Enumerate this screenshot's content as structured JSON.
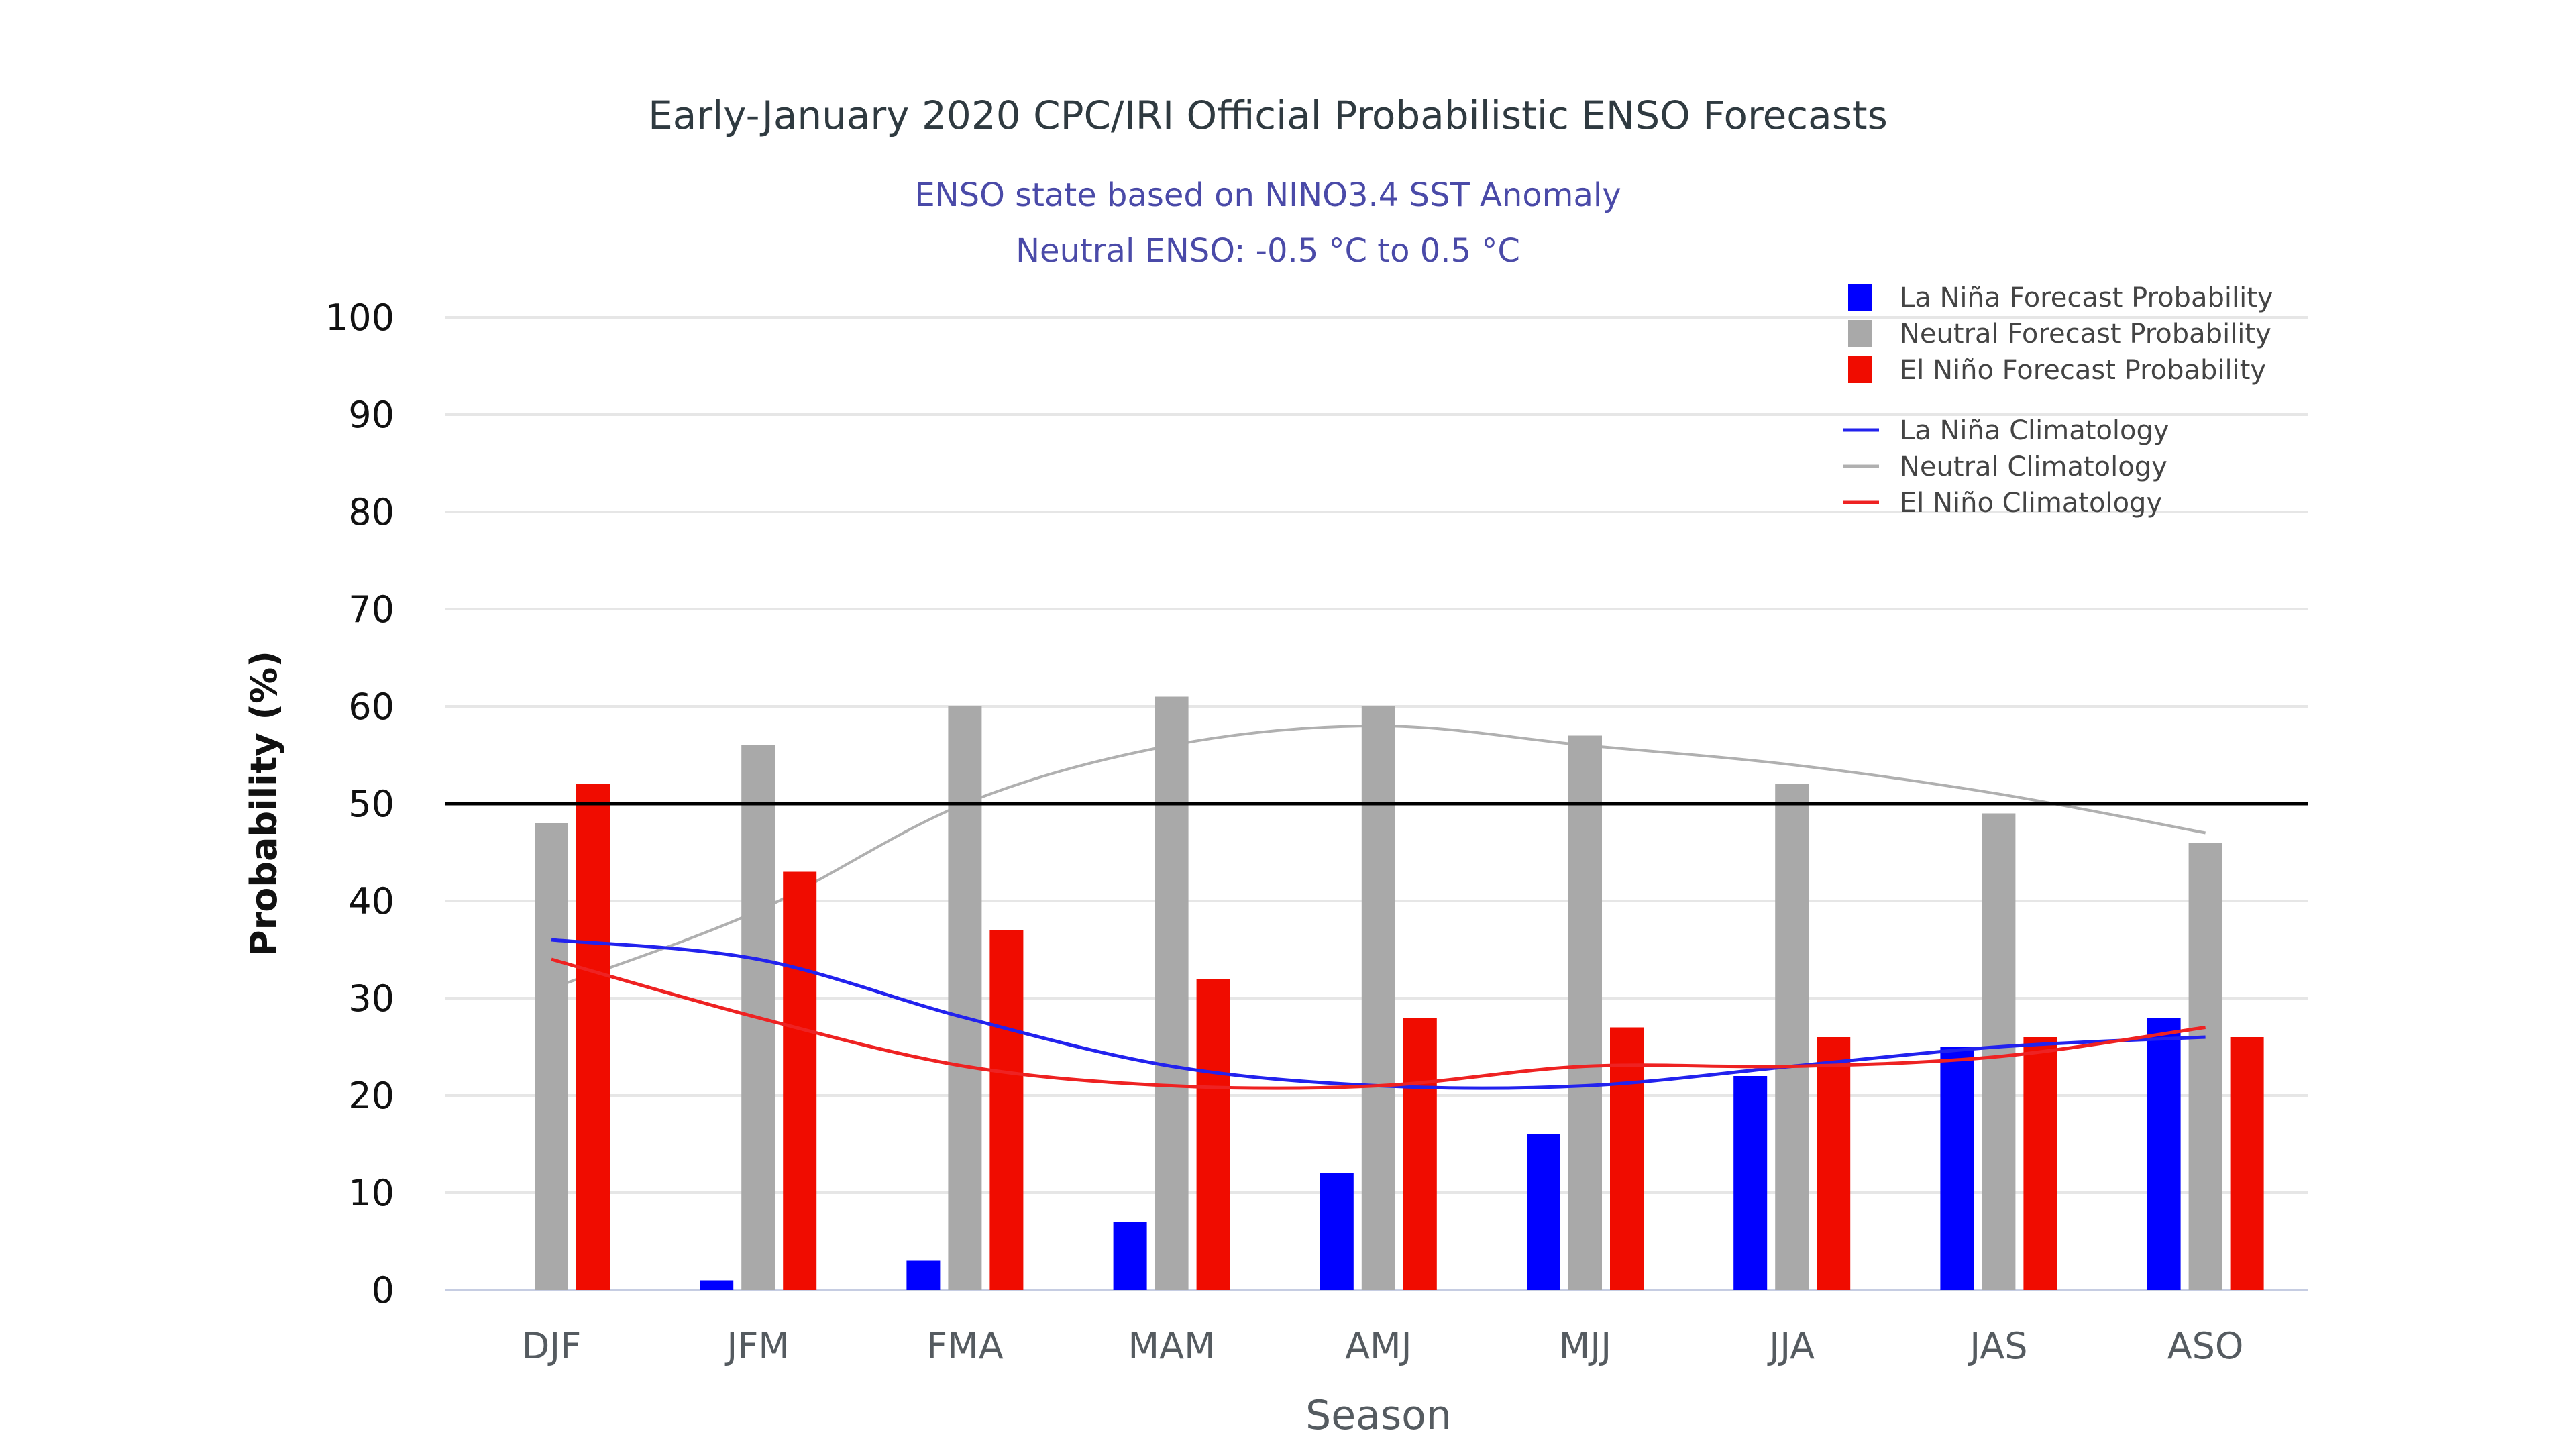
{
  "chart_data": {
    "type": "bar",
    "title": "Early-January 2020 CPC/IRI Official Probabilistic ENSO Forecasts",
    "subtitle_lines": [
      "ENSO state based on NINO3.4 SST Anomaly",
      "Neutral ENSO: -0.5 °C to 0.5 °C"
    ],
    "xlabel": "Season",
    "ylabel": "Probability (%)",
    "ylim": [
      0,
      100
    ],
    "yticks": [
      0,
      10,
      20,
      30,
      40,
      50,
      60,
      70,
      80,
      90,
      100
    ],
    "grid": true,
    "reference_line": {
      "value": 50,
      "color": "#000000"
    },
    "categories": [
      "DJF",
      "JFM",
      "FMA",
      "MAM",
      "AMJ",
      "MJJ",
      "JJA",
      "JAS",
      "ASO"
    ],
    "series": [
      {
        "name": "La Niña Forecast Probability",
        "kind": "bar",
        "color": "#0000ff",
        "values": [
          0,
          1,
          3,
          7,
          12,
          16,
          22,
          25,
          28
        ]
      },
      {
        "name": "Neutral Forecast Probability",
        "kind": "bar",
        "color": "#a9a9a9",
        "values": [
          48,
          56,
          60,
          61,
          60,
          57,
          52,
          49,
          46
        ]
      },
      {
        "name": "El Niño Forecast Probability",
        "kind": "bar",
        "color": "#f00c00",
        "values": [
          52,
          43,
          37,
          32,
          28,
          27,
          26,
          26,
          26
        ]
      },
      {
        "name": "La Niña Climatology",
        "kind": "line",
        "color": "#2222ee",
        "values": [
          36,
          34,
          28,
          23,
          21,
          21,
          23,
          25,
          26
        ]
      },
      {
        "name": "Neutral Climatology",
        "kind": "line",
        "color": "#b0b0b0",
        "values": [
          31,
          39,
          50,
          56,
          58,
          56,
          54,
          51,
          47
        ]
      },
      {
        "name": "El Niño Climatology",
        "kind": "line",
        "color": "#ee2222",
        "values": [
          34,
          28,
          23,
          21,
          21,
          23,
          23,
          24,
          27
        ]
      }
    ],
    "legend": {
      "position": "top-right",
      "items": [
        "La Niña Forecast Probability",
        "Neutral Forecast Probability",
        "El Niño Forecast Probability",
        "La Niña Climatology",
        "Neutral Climatology",
        "El Niño Climatology"
      ]
    }
  }
}
